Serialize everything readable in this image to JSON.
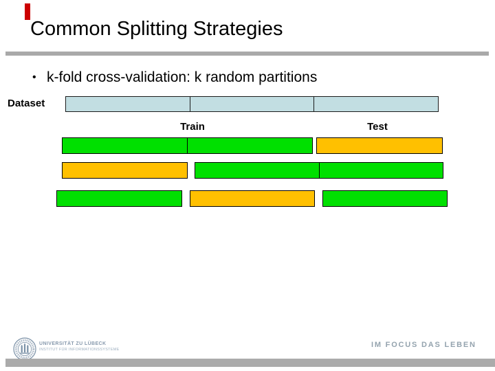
{
  "slide": {
    "title": "Common Splitting Strategies",
    "bullet_marker": "•",
    "bullet": "k-fold cross-validation: k random partitions",
    "dataset_label": "Dataset",
    "train_label": "Train",
    "test_label": "Test"
  },
  "diagram": {
    "dataset_segments": 3,
    "folds": [
      {
        "cells": [
          "train",
          "train",
          "test"
        ]
      },
      {
        "cells": [
          "test",
          "train",
          "train"
        ]
      },
      {
        "cells": [
          "train",
          "test",
          "train"
        ]
      }
    ]
  },
  "footer": {
    "university": "UNIVERSITÄT ZU LÜBECK",
    "institute": "INSTITUT FÜR INFORMATIONSSYSTEME",
    "motto": "IM FOCUS DAS LEBEN"
  },
  "colors": {
    "train_green": "#00e000",
    "test_orange": "#ffc000",
    "dataset_blue": "#c2dee2",
    "accent_red": "#cc0000",
    "divider_gray": "#a9a9a9",
    "footer_bar_gray": "#ababab",
    "footer_text_blue_gray": "#8799ad",
    "institute_text_blue_gray": "#9fb0c0",
    "motto_gray": "#94a3ae"
  }
}
